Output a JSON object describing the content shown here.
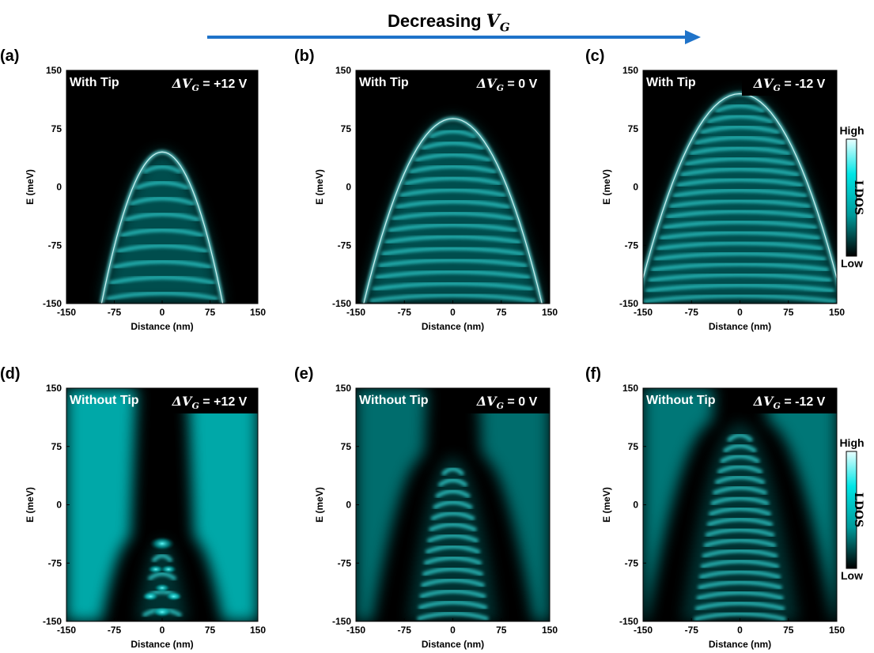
{
  "header": {
    "title_word": "Decreasing",
    "title_var": "V",
    "title_sub": "G"
  },
  "colors": {
    "arrow": "#1f73c9",
    "ldos_high": "#e9ffff",
    "ldos_mid": "#00e6e6",
    "ldos_low": "#000000",
    "label_box_bg": "#000000",
    "label_text": "#ffffff"
  },
  "colorbars": [
    {
      "id": "top",
      "high": "High",
      "low": "Low",
      "title": "LDOS"
    },
    {
      "id": "bottom",
      "high": "High",
      "low": "Low",
      "title": "LDOS"
    }
  ],
  "chart_data": [
    {
      "panel": "(a)",
      "type": "heatmap",
      "tip_label": "With Tip",
      "vg_prefix": "ΔV",
      "vg_sub": "G",
      "vg_value": " = +12 V",
      "xlabel": "Distance (nm)",
      "ylabel": "E (meV)",
      "xlim": [
        -150,
        150
      ],
      "ylim": [
        -150,
        150
      ],
      "xticks": [
        "-150",
        "-75",
        "0",
        "75",
        "150"
      ],
      "yticks": [
        "-150",
        "-75",
        "0",
        "75",
        "150"
      ],
      "band_top_meV": 45,
      "band_half_width_nm_at_bottom": 95
    },
    {
      "panel": "(b)",
      "type": "heatmap",
      "tip_label": "With Tip",
      "vg_prefix": "ΔV",
      "vg_sub": "G",
      "vg_value": " = 0 V",
      "xlabel": "Distance (nm)",
      "ylabel": "E (meV)",
      "xlim": [
        -150,
        150
      ],
      "ylim": [
        -150,
        150
      ],
      "xticks": [
        "-150",
        "-75",
        "0",
        "75",
        "150"
      ],
      "yticks": [
        "-150",
        "-75",
        "0",
        "75",
        "150"
      ],
      "band_top_meV": 88,
      "band_half_width_nm_at_bottom": 138
    },
    {
      "panel": "(c)",
      "type": "heatmap",
      "tip_label": "With Tip",
      "vg_prefix": "ΔV",
      "vg_sub": "G",
      "vg_value": " = -12 V",
      "xlabel": "Distance (nm)",
      "ylabel": "E (meV)",
      "xlim": [
        -150,
        150
      ],
      "ylim": [
        -150,
        150
      ],
      "xticks": [
        "-150",
        "-75",
        "0",
        "75",
        "150"
      ],
      "yticks": [
        "-150",
        "-75",
        "0",
        "75",
        "150"
      ],
      "band_top_meV": 120,
      "band_half_width_nm_at_bottom": 160
    },
    {
      "panel": "(d)",
      "type": "heatmap",
      "tip_label": "Without Tip",
      "vg_prefix": "ΔV",
      "vg_sub": "G",
      "vg_value": " = +12 V",
      "xlabel": "Distance (nm)",
      "ylabel": "E (meV)",
      "xlim": [
        -150,
        150
      ],
      "ylim": [
        -150,
        150
      ],
      "xticks": [
        "-150",
        "-75",
        "0",
        "75",
        "150"
      ],
      "yticks": [
        "-150",
        "-75",
        "0",
        "75",
        "150"
      ],
      "band_top_meV": -45,
      "band_half_width_nm_at_bottom": 40
    },
    {
      "panel": "(e)",
      "type": "heatmap",
      "tip_label": "Without Tip",
      "vg_prefix": "ΔV",
      "vg_sub": "G",
      "vg_value": " = 0 V",
      "xlabel": "Distance (nm)",
      "ylabel": "E (meV)",
      "xlim": [
        -150,
        150
      ],
      "ylim": [
        -150,
        150
      ],
      "xticks": [
        "-150",
        "-75",
        "0",
        "75",
        "150"
      ],
      "yticks": [
        "-150",
        "-75",
        "0",
        "75",
        "150"
      ],
      "band_top_meV": 62,
      "band_half_width_nm_at_bottom": 70
    },
    {
      "panel": "(f)",
      "type": "heatmap",
      "tip_label": "Without Tip",
      "vg_prefix": "ΔV",
      "vg_sub": "G",
      "vg_value": " = -12 V",
      "xlabel": "Distance (nm)",
      "ylabel": "E (meV)",
      "xlim": [
        -150,
        150
      ],
      "ylim": [
        -150,
        150
      ],
      "xticks": [
        "-150",
        "-75",
        "0",
        "75",
        "150"
      ],
      "yticks": [
        "-150",
        "-75",
        "0",
        "75",
        "150"
      ],
      "band_top_meV": 105,
      "band_half_width_nm_at_bottom": 90
    }
  ]
}
